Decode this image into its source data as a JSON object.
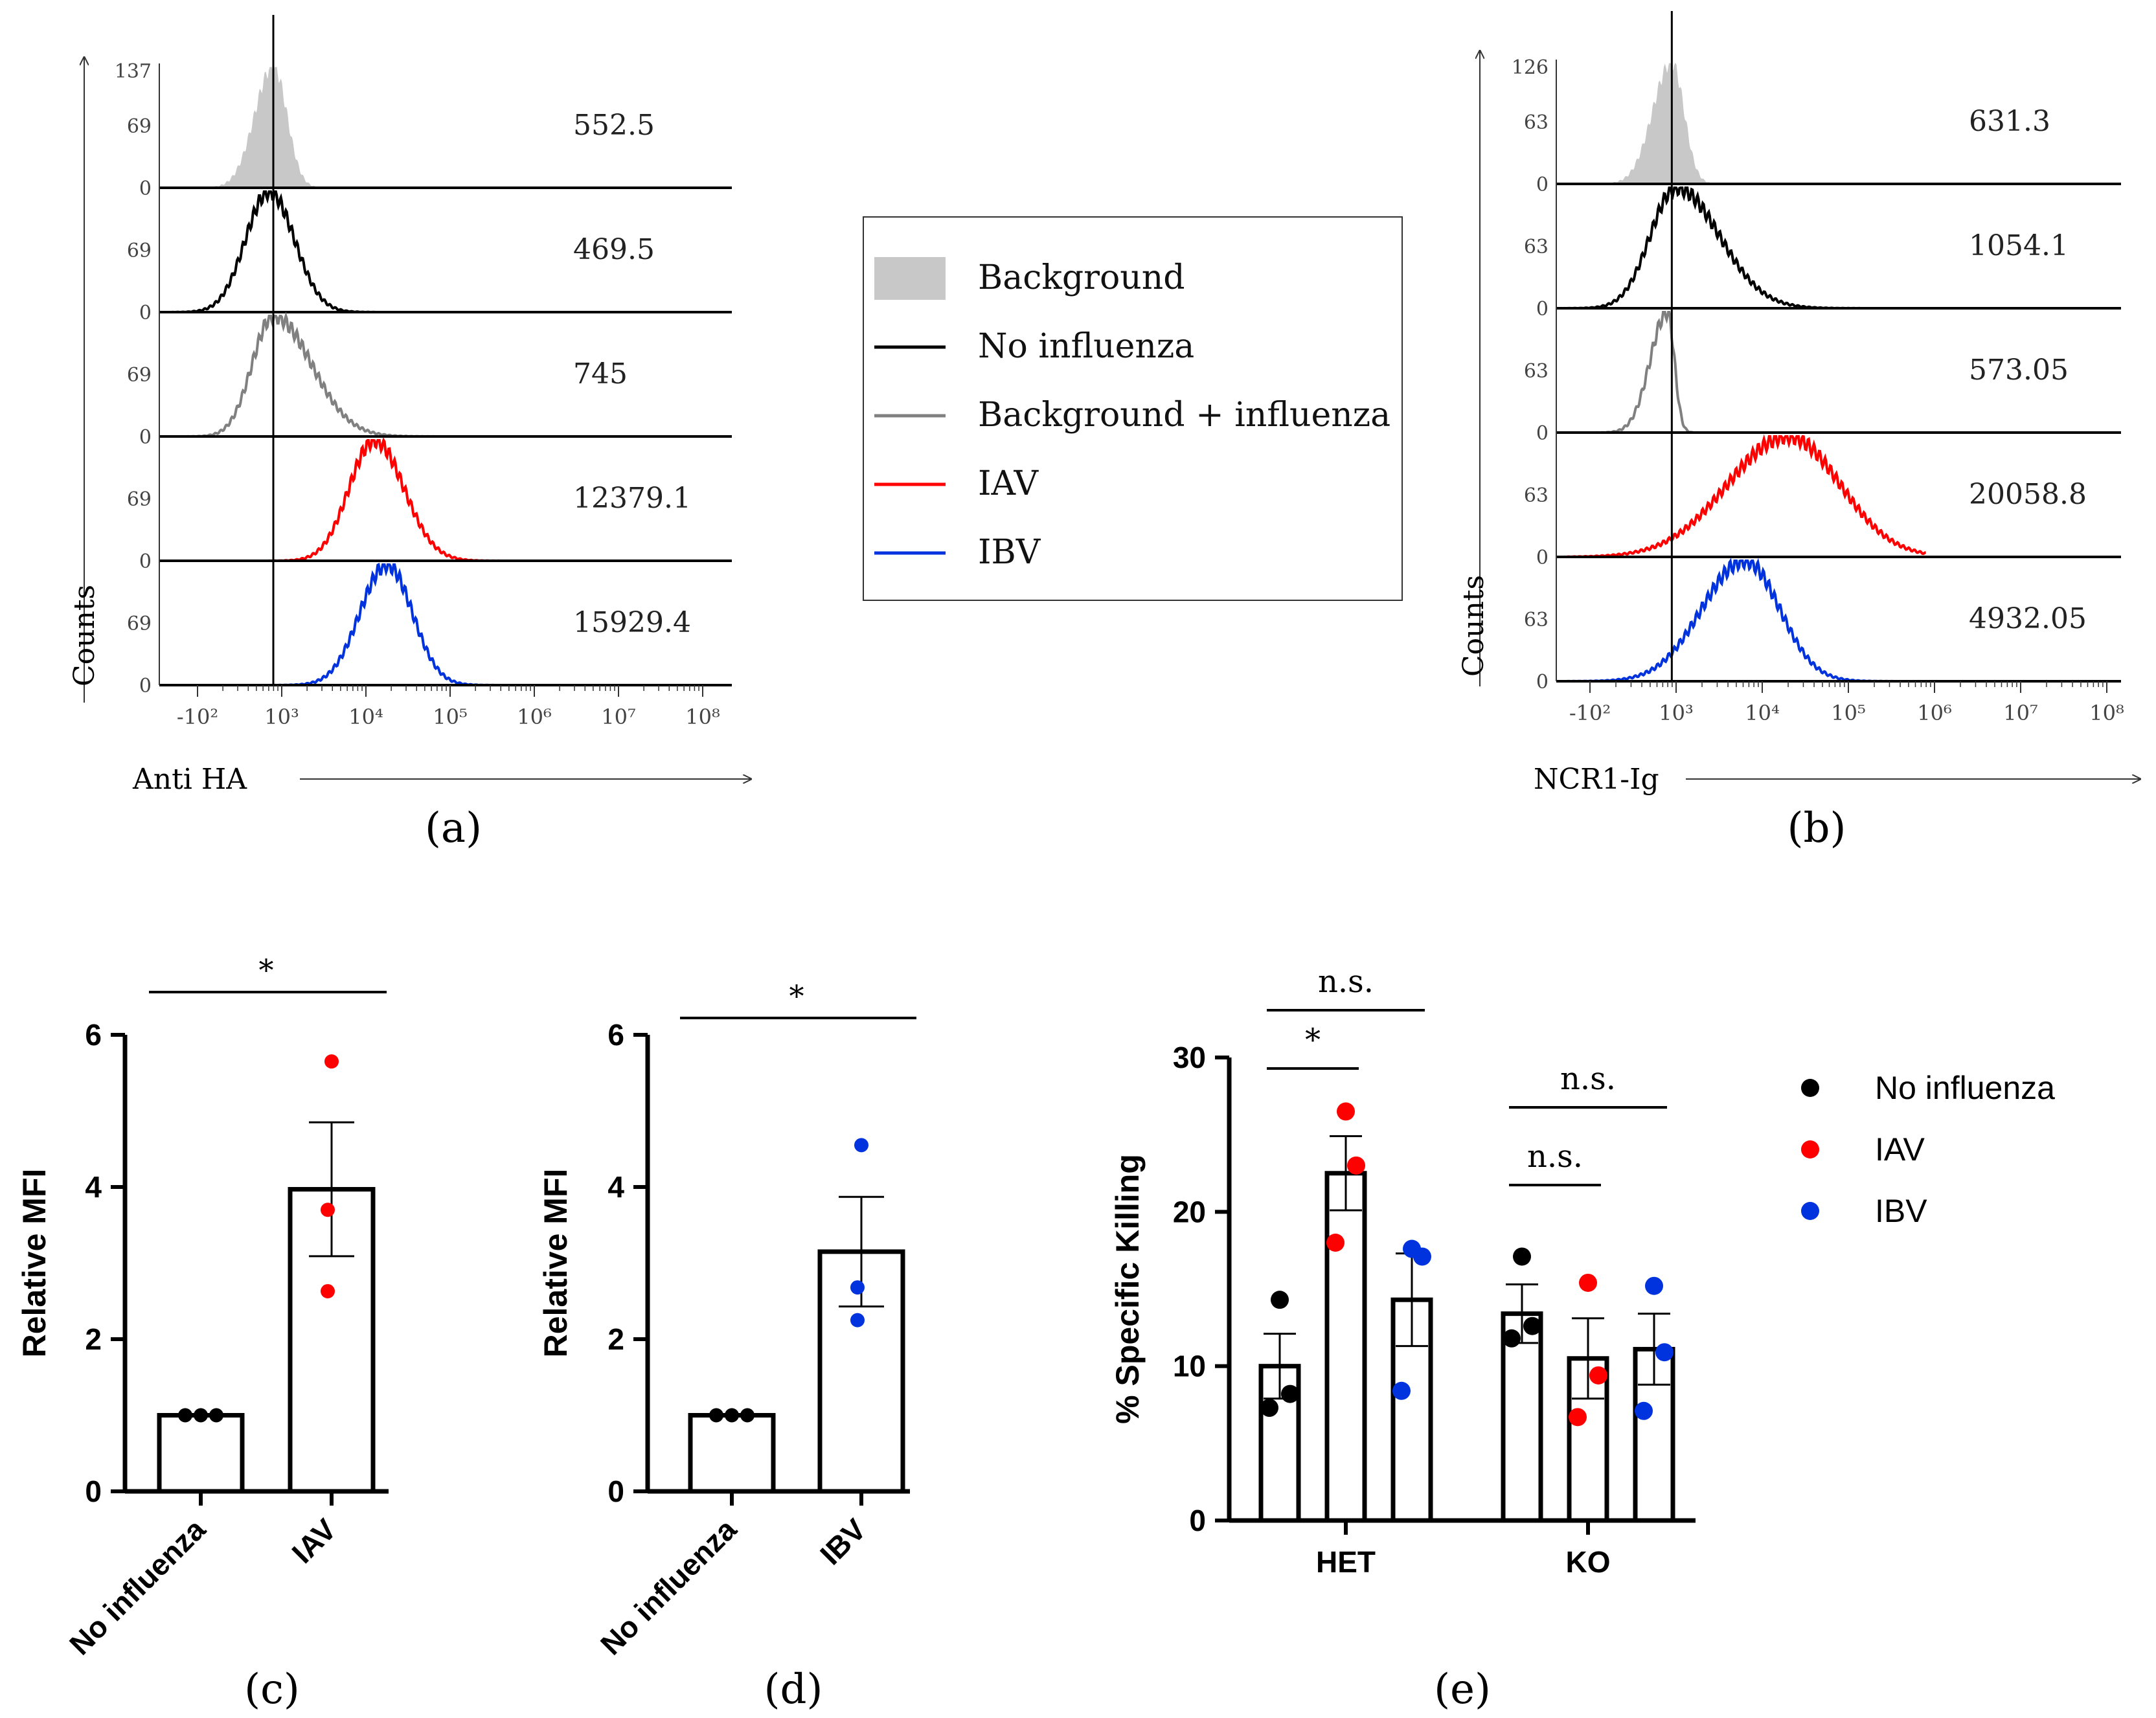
{
  "figure": {
    "panel_labels": [
      "(a)",
      "(b)",
      "(c)",
      "(d)",
      "(e)"
    ]
  },
  "legend_flow": {
    "items": [
      {
        "label": "Background",
        "color": "#c8c8c8",
        "style": "fill"
      },
      {
        "label": "No influenza",
        "color": "#000000",
        "style": "line"
      },
      {
        "label": "Background + influenza",
        "color": "#808080",
        "style": "line"
      },
      {
        "label": "IAV",
        "color": "#ff0000",
        "style": "line"
      },
      {
        "label": "IBV",
        "color": "#0033dd",
        "style": "line"
      }
    ]
  },
  "legend_killing": {
    "items": [
      {
        "label": "No influenza",
        "color": "#000000"
      },
      {
        "label": "IAV",
        "color": "#ff0000"
      },
      {
        "label": "IBV",
        "color": "#0033dd"
      }
    ]
  },
  "chart_data": [
    {
      "id": "a",
      "type": "histogram",
      "xlabel": "Anti HA",
      "ylabel": "Counts",
      "x_scale": "biexponential",
      "x_tick_labels": [
        "-10²",
        "10³",
        "10⁴",
        "10⁵",
        "10⁶",
        "10⁷",
        "10⁸"
      ],
      "gate_log10": 2.9,
      "rows": [
        {
          "name": "Background",
          "color": "#c8c8c8",
          "fill": true,
          "ymax_label": "137",
          "ymid_label": "69",
          "ymin_label": "0",
          "peak_log10": 2.9,
          "sigma_left": 0.22,
          "sigma_right": 0.16,
          "mfi": "552.5"
        },
        {
          "name": "No influenza",
          "color": "#000000",
          "fill": false,
          "ymax_label": "",
          "ymid_label": "69",
          "ymin_label": "0",
          "peak_log10": 2.85,
          "sigma_left": 0.28,
          "sigma_right": 0.3,
          "mfi": "469.5"
        },
        {
          "name": "Background + influenza",
          "color": "#808080",
          "fill": false,
          "ymax_label": "",
          "ymid_label": "69",
          "ymin_label": "0",
          "peak_log10": 2.9,
          "sigma_left": 0.25,
          "sigma_right": 0.45,
          "mfi": "745"
        },
        {
          "name": "IAV",
          "color": "#ff0000",
          "fill": false,
          "ymax_label": "",
          "ymid_label": "69",
          "ymin_label": "0",
          "peak_log10": 4.1,
          "sigma_left": 0.3,
          "sigma_right": 0.35,
          "mfi": "12379.1"
        },
        {
          "name": "IBV",
          "color": "#0033dd",
          "fill": false,
          "ymax_label": "",
          "ymid_label": "69",
          "ymin_label": "0",
          "peak_log10": 4.25,
          "sigma_left": 0.32,
          "sigma_right": 0.3,
          "mfi": "15929.4"
        }
      ]
    },
    {
      "id": "b",
      "type": "histogram",
      "xlabel": "NCR1-Ig",
      "ylabel": "Counts",
      "x_scale": "biexponential",
      "x_tick_labels": [
        "-10²",
        "10³",
        "10⁴",
        "10⁵",
        "10⁶",
        "10⁷",
        "10⁸"
      ],
      "gate_log10": 2.95,
      "rows": [
        {
          "name": "Background",
          "color": "#c8c8c8",
          "fill": true,
          "ymax_label": "126",
          "ymid_label": "63",
          "ymin_label": "0",
          "peak_log10": 2.95,
          "sigma_left": 0.22,
          "sigma_right": 0.14,
          "mfi": "631.3"
        },
        {
          "name": "No influenza",
          "color": "#000000",
          "fill": false,
          "ymax_label": "",
          "ymid_label": "63",
          "ymin_label": "0",
          "peak_log10": 3.0,
          "sigma_left": 0.3,
          "sigma_right": 0.5,
          "mfi": "1054.1"
        },
        {
          "name": "Background + influenza",
          "color": "#808080",
          "fill": false,
          "ymax_label": "",
          "ymid_label": "63",
          "ymin_label": "0",
          "peak_log10": 2.9,
          "sigma_left": 0.2,
          "sigma_right": 0.08,
          "mfi": "573.05"
        },
        {
          "name": "IAV",
          "color": "#ff0000",
          "fill": false,
          "ymax_label": "",
          "ymid_label": "63",
          "ymin_label": "0",
          "peak_log10": 4.3,
          "sigma_left": 0.7,
          "sigma_right": 0.6,
          "mfi": "20058.8"
        },
        {
          "name": "IBV",
          "color": "#0033dd",
          "fill": false,
          "ymax_label": "",
          "ymid_label": "63",
          "ymin_label": "0",
          "peak_log10": 3.8,
          "sigma_left": 0.5,
          "sigma_right": 0.4,
          "mfi": "4932.05"
        }
      ]
    },
    {
      "id": "c",
      "type": "bar",
      "ylabel": "Relative MFI",
      "ylim": [
        0,
        6
      ],
      "yticks": [
        0,
        2,
        4,
        6
      ],
      "categories": [
        "No influenza",
        "IAV"
      ],
      "values": [
        1.0,
        3.97
      ],
      "sem": [
        0.0,
        0.88
      ],
      "points": [
        [
          1.0,
          1.0,
          1.0
        ],
        [
          5.65,
          3.7,
          2.63
        ]
      ],
      "point_colors": [
        "#000000",
        "#ff0000"
      ],
      "significance": [
        {
          "from": 0,
          "to": 1,
          "label": "*"
        }
      ]
    },
    {
      "id": "d",
      "type": "bar",
      "ylabel": "Relative MFI",
      "ylim": [
        0,
        6
      ],
      "yticks": [
        0,
        2,
        4,
        6
      ],
      "categories": [
        "No influenza",
        "IBV"
      ],
      "values": [
        1.0,
        3.15
      ],
      "sem": [
        0.0,
        0.72
      ],
      "points": [
        [
          1.0,
          1.0,
          1.0
        ],
        [
          4.55,
          2.68,
          2.25
        ]
      ],
      "point_colors": [
        "#000000",
        "#0033dd"
      ],
      "significance": [
        {
          "from": 0,
          "to": 1,
          "label": "*"
        }
      ]
    },
    {
      "id": "e",
      "type": "grouped_bar",
      "ylabel": "% Specific Killing",
      "ylim": [
        0,
        30
      ],
      "yticks": [
        0,
        10,
        20,
        30
      ],
      "groups": [
        "HET",
        "KO"
      ],
      "series": [
        {
          "name": "No influenza",
          "color": "#000000",
          "values": [
            10.0,
            13.4
          ],
          "sem": [
            2.1,
            1.9
          ],
          "points": [
            [
              14.3,
              8.2,
              7.3
            ],
            [
              17.1,
              12.6,
              11.8
            ]
          ]
        },
        {
          "name": "IAV",
          "color": "#ff0000",
          "values": [
            22.5,
            10.5
          ],
          "sem": [
            2.4,
            2.6
          ],
          "points": [
            [
              26.5,
              23.0,
              18.0
            ],
            [
              15.4,
              9.4,
              6.7
            ]
          ]
        },
        {
          "name": "IBV",
          "color": "#0033dd",
          "values": [
            14.3,
            11.1
          ],
          "sem": [
            3.0,
            2.3
          ],
          "points": [
            [
              17.6,
              17.1,
              8.4
            ],
            [
              15.2,
              10.9,
              7.1
            ]
          ]
        }
      ],
      "significance": [
        {
          "group": 0,
          "from": 0,
          "to": 1,
          "label": "*"
        },
        {
          "group": 0,
          "from": 0,
          "to": 2,
          "label": "n.s."
        },
        {
          "group": 1,
          "from": 0,
          "to": 1,
          "label": "n.s."
        },
        {
          "group": 1,
          "from": 0,
          "to": 2,
          "label": "n.s."
        }
      ]
    }
  ]
}
